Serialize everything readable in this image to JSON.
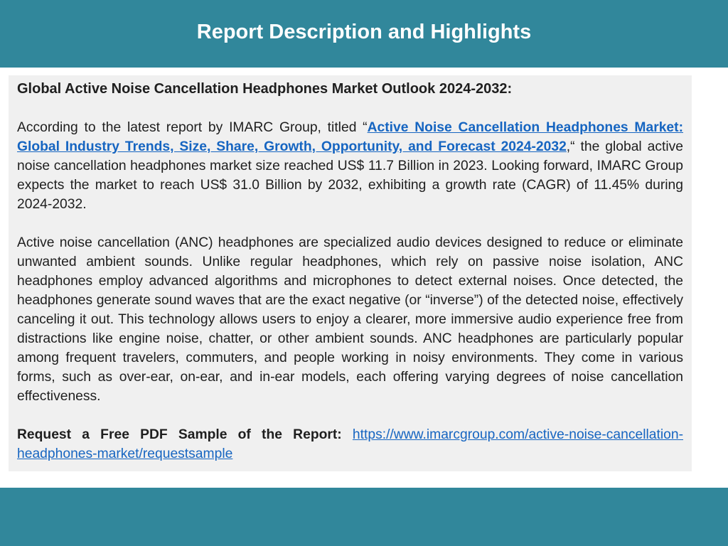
{
  "header": {
    "title": "Report Description and Highlights"
  },
  "content": {
    "heading": "Global Active Noise Cancellation Headphones Market Outlook 2024-2032:",
    "p1_before_link": "According to the latest report by IMARC Group, titled “",
    "p1_link": "Active Noise Cancellation Headphones Market: Global Industry Trends, Size, Share, Growth, Opportunity, and Forecast 2024-2032",
    "p1_after_link": ",“ the global active noise cancellation headphones market size reached US$ 11.7 Billion in 2023. Looking forward, IMARC Group expects the market to reach US$ 31.0 Billion by 2032, exhibiting a growth rate (CAGR) of 11.45% during 2024-2032.",
    "p2": "Active noise cancellation (ANC) headphones are specialized audio devices designed to reduce or eliminate unwanted ambient sounds. Unlike regular headphones, which rely on passive noise isolation, ANC headphones employ advanced algorithms and microphones to detect external noises. Once detected, the headphones generate sound waves that are the exact negative (or “inverse”) of the detected noise, effectively canceling it out. This technology allows users to enjoy a clearer, more immersive audio experience free from distractions like engine noise, chatter, or other ambient sounds. ANC headphones are particularly popular among frequent travelers, commuters, and people working in noisy environments. They come in various forms, such as over-ear, on-ear, and in-ear models, each offering varying degrees of noise cancellation effectiveness.",
    "sample_label": "Request a Free PDF Sample of the Report:",
    "sample_link": "https://www.imarcgroup.com/active-noise-cancellation-headphones-market/requestsample"
  }
}
